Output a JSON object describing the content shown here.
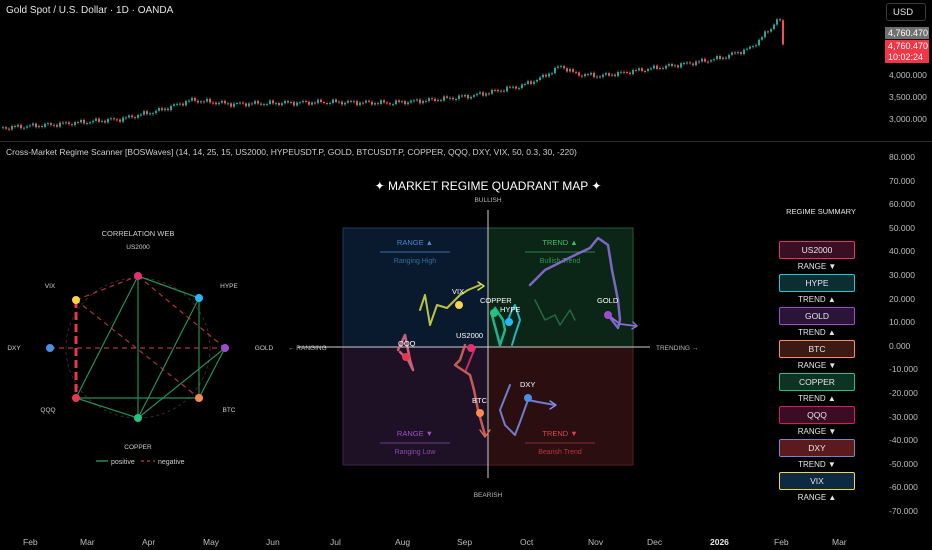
{
  "header": {
    "symbol_title": "Gold Spot / U.S. Dollar · 1D · OANDA",
    "currency_button": "USD"
  },
  "price_tags": {
    "last_close": "4,760.470",
    "current": "4,760.470",
    "countdown": "10:02:24"
  },
  "top_axis_labels": [
    "4,000.000",
    "3,500.000",
    "3,000.000"
  ],
  "indicator": {
    "title": "Cross-Market Regime Scanner [BOSWaves] (14, 14, 25, 15, US2000, HYPEUSDT.P, GOLD, BTCUSDT.P, COPPER, QQQ, DXY, VIX, 50, 0.3, 30, -220)"
  },
  "lower_axis_labels": [
    "80.000",
    "70.000",
    "60.000",
    "50.000",
    "40.000",
    "30.000",
    "20.000",
    "10.000",
    "0.000",
    "-10.000",
    "-20.000",
    "-30.000",
    "-40.000",
    "-50.000",
    "-60.000",
    "-70.000"
  ],
  "time_axis": [
    "Feb",
    "Mar",
    "Apr",
    "May",
    "Jun",
    "Jul",
    "Aug",
    "Sep",
    "Oct",
    "Nov",
    "Dec",
    "2026",
    "Feb",
    "Mar"
  ],
  "correlation_web": {
    "title": "CORRELATION WEB",
    "nodes": [
      {
        "name": "US2000",
        "color": "#e0336f"
      },
      {
        "name": "HYPE",
        "color": "#29b6f6"
      },
      {
        "name": "GOLD",
        "color": "#9c4dcc"
      },
      {
        "name": "BTC",
        "color": "#ff8a50"
      },
      {
        "name": "COPPER",
        "color": "#26c281"
      },
      {
        "name": "QQQ",
        "color": "#e53950"
      },
      {
        "name": "DXY",
        "color": "#4a90e2"
      },
      {
        "name": "VIX",
        "color": "#f5d54a"
      }
    ],
    "legend_positive": "positive",
    "legend_negative": "negative"
  },
  "quadrant_map": {
    "title": "✦ MARKET REGIME QUADRANT MAP ✦",
    "axis_bullish": "BULLISH",
    "axis_bearish": "BEARISH",
    "axis_ranging": "← RANGING",
    "axis_trending": "TRENDING →",
    "quadrants": {
      "top_left": {
        "label": "RANGE ▲",
        "sub": "Ranging High"
      },
      "top_right": {
        "label": "TREND ▲",
        "sub": "Bullish Trend"
      },
      "bottom_left": {
        "label": "RANGE ▼",
        "sub": "Ranging Low"
      },
      "bottom_right": {
        "label": "TREND ▼",
        "sub": "Bearish Trend"
      }
    },
    "asset_labels": {
      "vix": "VIX",
      "copper": "COPPER",
      "hype": "HYPE",
      "gold": "GOLD",
      "qqq": "QQQ",
      "us2000": "US2000",
      "dxy": "DXY",
      "btc": "BTC"
    }
  },
  "regime_summary": {
    "title": "REGIME SUMMARY",
    "items": [
      {
        "asset": "US2000",
        "state": "RANGE ▼",
        "border": "#e0336f",
        "fill": "#3a0f24"
      },
      {
        "asset": "HYPE",
        "state": "TREND ▲",
        "border": "#26c6da",
        "fill": "#0c2e33"
      },
      {
        "asset": "GOLD",
        "state": "TREND ▲",
        "border": "#9c4dcc",
        "fill": "#2a1538"
      },
      {
        "asset": "BTC",
        "state": "RANGE ▼",
        "border": "#ff8a65",
        "fill": "#3a1a12"
      },
      {
        "asset": "COPPER",
        "state": "TREND ▲",
        "border": "#26c281",
        "fill": "#0d3324"
      },
      {
        "asset": "QQQ",
        "state": "RANGE ▼",
        "border": "#d81b60",
        "fill": "#3a0d24"
      },
      {
        "asset": "DXY",
        "state": "TREND ▼",
        "border": "#8e7cc3",
        "fill": "#5a1a1e"
      },
      {
        "asset": "VIX",
        "state": "RANGE ▲",
        "border": "#f5d54a",
        "fill": "#0d2a44"
      }
    ]
  }
}
